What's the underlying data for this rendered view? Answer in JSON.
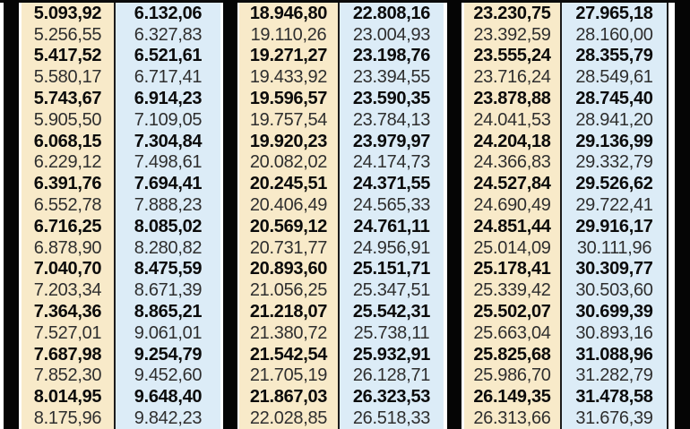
{
  "page": {
    "description": "Printed numeric rate table with six value columns in three paired groups, odd rows bold",
    "colors": {
      "cream_column_bg": "#f8eac9",
      "blue_column_bg": "#dcecf7",
      "black_bar": "#050505",
      "thin_divider": "#1c1c1c",
      "bold_text": "#0b0b0b",
      "regular_text": "#2e2e2e",
      "background": "#ffffff"
    }
  },
  "table": {
    "row_count": 20,
    "bold_row_pattern": "odd rows (1st, 3rd, 5th, ...) are bold",
    "columns": [
      {
        "id": "column-1",
        "tone": "cream",
        "values": [
          "5.093,92",
          "5.256,55",
          "5.417,52",
          "5.580,17",
          "5.743,67",
          "5.905,50",
          "6.068,15",
          "6.229,12",
          "6.391,76",
          "6.552,78",
          "6.716,25",
          "6.878,90",
          "7.040,70",
          "7.203,34",
          "7.364,36",
          "7.527,01",
          "7.687,98",
          "7.852,30",
          "8.014,95",
          "8.175,96"
        ]
      },
      {
        "id": "column-2",
        "tone": "blue",
        "values": [
          "6.132,06",
          "6.327,83",
          "6.521,61",
          "6.717,41",
          "6.914,23",
          "7.109,05",
          "7.304,84",
          "7.498,61",
          "7.694,41",
          "7.888,23",
          "8.085,02",
          "8.280,82",
          "8.475,59",
          "8.671,39",
          "8.865,21",
          "9.061,01",
          "9.254,79",
          "9.452,60",
          "9.648,40",
          "9.842,23"
        ]
      },
      {
        "id": "column-3",
        "tone": "cream",
        "values": [
          "18.946,80",
          "19.110,26",
          "19.271,27",
          "19.433,92",
          "19.596,57",
          "19.757,54",
          "19.920,23",
          "20.082,02",
          "20.245,51",
          "20.406,49",
          "20.569,12",
          "20.731,77",
          "20.893,60",
          "21.056,25",
          "21.218,07",
          "21.380,72",
          "21.542,54",
          "21.705,19",
          "21.867,03",
          "22.028,85"
        ]
      },
      {
        "id": "column-4",
        "tone": "blue",
        "values": [
          "22.808,16",
          "23.004,93",
          "23.198,76",
          "23.394,55",
          "23.590,35",
          "23.784,13",
          "23.979,97",
          "24.174,73",
          "24.371,55",
          "24.565,33",
          "24.761,11",
          "24.956,91",
          "25.151,71",
          "25.347,51",
          "25.542,31",
          "25.738,11",
          "25.932,91",
          "26.128,71",
          "26.323,53",
          "26.518,33"
        ]
      },
      {
        "id": "column-5",
        "tone": "cream",
        "values": [
          "23.230,75",
          "23.392,59",
          "23.555,24",
          "23.716,24",
          "23.878,88",
          "24.041,53",
          "24.204,18",
          "24.366,83",
          "24.527,84",
          "24.690,49",
          "24.851,44",
          "25.014,09",
          "25.178,41",
          "25.339,42",
          "25.502,07",
          "25.663,04",
          "25.825,68",
          "25.986,70",
          "26.149,35",
          "26.313,66"
        ]
      },
      {
        "id": "column-6",
        "tone": "blue",
        "values": [
          "27.965,18",
          "28.160,00",
          "28.355,79",
          "28.549,61",
          "28.745,40",
          "28.941,20",
          "29.136,99",
          "29.332,79",
          "29.526,62",
          "29.722,41",
          "29.916,17",
          "30.111,96",
          "30.309,77",
          "30.503,60",
          "30.699,39",
          "30.893,16",
          "31.088,96",
          "31.282,79",
          "31.478,58",
          "31.676,39"
        ]
      }
    ]
  }
}
